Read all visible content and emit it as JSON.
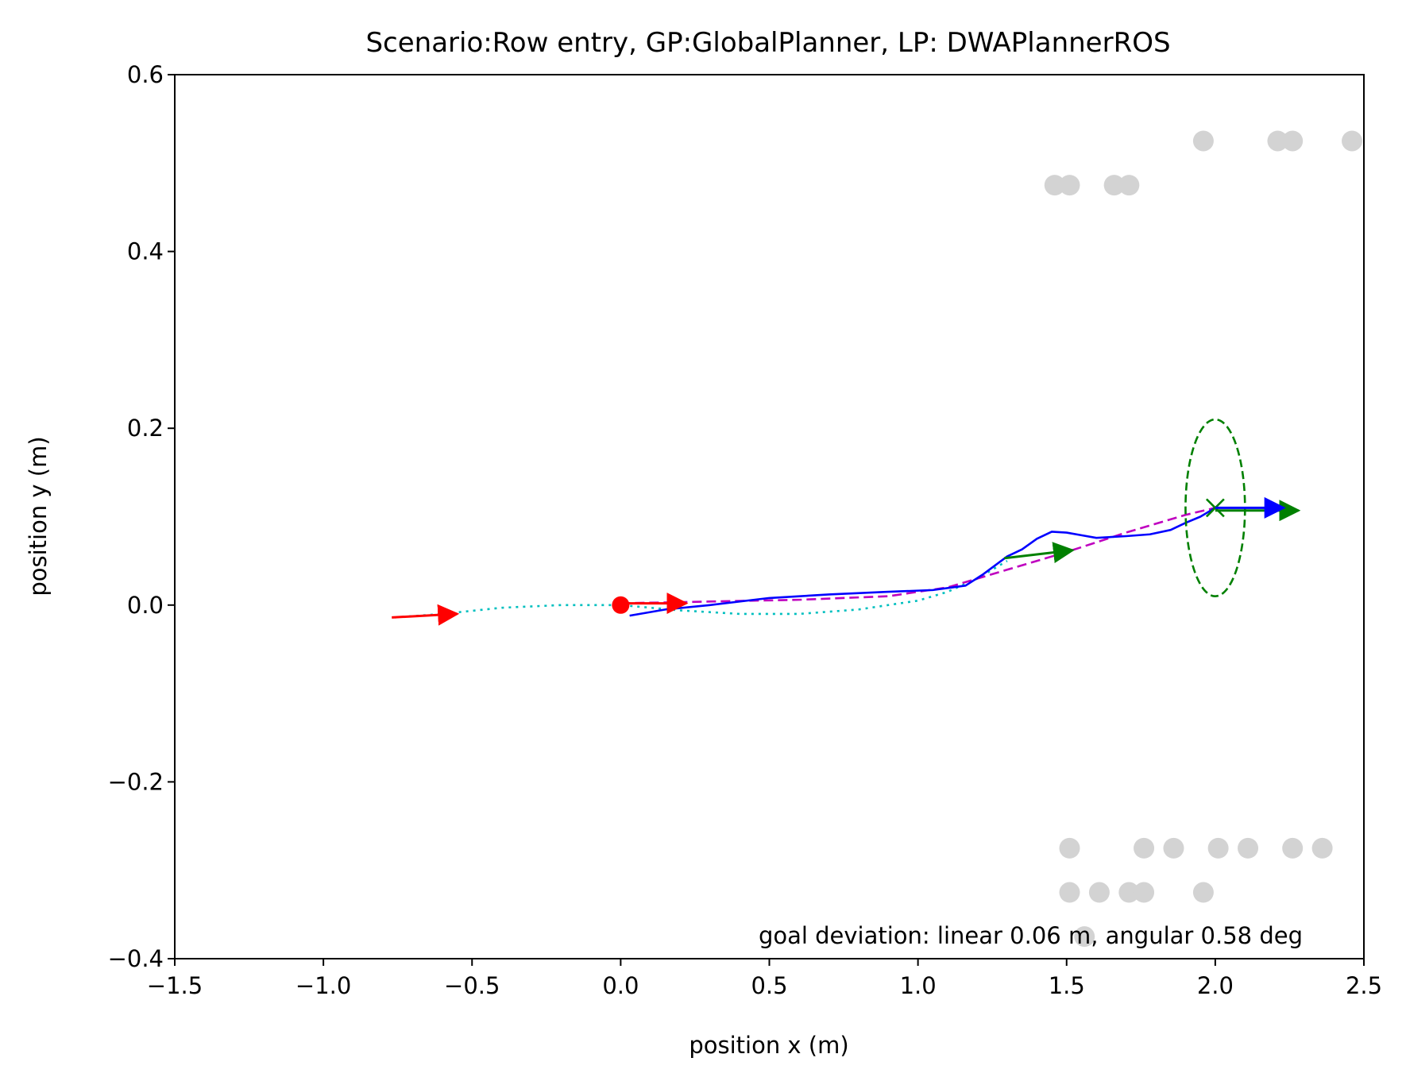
{
  "chart_data": {
    "type": "line",
    "title": "Scenario:Row entry, GP:GlobalPlanner, LP: DWAPlannerROS",
    "xlabel": "position x (m)",
    "ylabel": "position y (m)",
    "xlim": [
      -1.5,
      2.5
    ],
    "ylim": [
      -0.4,
      0.6
    ],
    "x_ticks": [
      -1.5,
      -1.0,
      -0.5,
      0.0,
      0.5,
      1.0,
      1.5,
      2.0,
      2.5
    ],
    "x_tick_labels": [
      "−1.5",
      "−1.0",
      "−0.5",
      "0.0",
      "0.5",
      "1.0",
      "1.5",
      "2.0",
      "2.5"
    ],
    "y_ticks": [
      -0.4,
      -0.2,
      0.0,
      0.2,
      0.4,
      0.6
    ],
    "y_tick_labels": [
      "−0.4",
      "−0.2",
      "0.0",
      "0.2",
      "0.4",
      "0.6"
    ],
    "grid": false,
    "annotation": "goal deviation: linear 0.06 m, angular 0.58 deg",
    "colors": {
      "obstacles": "#d3d3d3",
      "robot_path": "#0000ff",
      "global_plan": "#bf00bf",
      "reference_path": "#00bfbf",
      "goal": "#008000",
      "start": "#ff0000"
    },
    "obstacles": [
      {
        "x": 1.46,
        "y": 0.475
      },
      {
        "x": 1.51,
        "y": 0.475
      },
      {
        "x": 1.66,
        "y": 0.475
      },
      {
        "x": 1.71,
        "y": 0.475
      },
      {
        "x": 1.96,
        "y": 0.525
      },
      {
        "x": 2.21,
        "y": 0.525
      },
      {
        "x": 2.26,
        "y": 0.525
      },
      {
        "x": 2.46,
        "y": 0.525
      },
      {
        "x": 1.51,
        "y": -0.275
      },
      {
        "x": 1.76,
        "y": -0.275
      },
      {
        "x": 1.86,
        "y": -0.275
      },
      {
        "x": 2.01,
        "y": -0.275
      },
      {
        "x": 2.11,
        "y": -0.275
      },
      {
        "x": 2.26,
        "y": -0.275
      },
      {
        "x": 2.36,
        "y": -0.275
      },
      {
        "x": 1.51,
        "y": -0.325
      },
      {
        "x": 1.61,
        "y": -0.325
      },
      {
        "x": 1.71,
        "y": -0.325
      },
      {
        "x": 1.76,
        "y": -0.325
      },
      {
        "x": 1.96,
        "y": -0.325
      },
      {
        "x": 1.56,
        "y": -0.375
      }
    ],
    "series": [
      {
        "style": "dotted",
        "x": [
          -0.76,
          -0.6,
          -0.4,
          -0.2,
          0.0,
          0.2,
          0.4,
          0.6,
          0.8,
          1.0,
          1.1,
          1.2,
          1.3
        ],
        "y": [
          -0.014,
          -0.01,
          -0.003,
          0.0,
          0.0,
          -0.006,
          -0.01,
          -0.01,
          -0.005,
          0.005,
          0.015,
          0.03,
          0.05
        ]
      },
      {
        "style": "dashed",
        "x": [
          0.0,
          0.3,
          0.6,
          0.9,
          1.1,
          1.3,
          1.5,
          1.7,
          1.9,
          2.0
        ],
        "y": [
          0.002,
          0.004,
          0.006,
          0.01,
          0.02,
          0.04,
          0.06,
          0.082,
          0.102,
          0.11
        ]
      },
      {
        "style": "solid",
        "x": [
          0.03,
          0.15,
          0.3,
          0.5,
          0.7,
          0.9,
          1.05,
          1.16,
          1.22,
          1.3,
          1.35,
          1.4,
          1.45,
          1.5,
          1.55,
          1.6,
          1.7,
          1.78,
          1.85,
          1.9,
          1.95,
          2.0,
          2.2
        ],
        "y": [
          -0.012,
          -0.005,
          0.0,
          0.008,
          0.012,
          0.015,
          0.017,
          0.022,
          0.035,
          0.055,
          0.063,
          0.075,
          0.083,
          0.082,
          0.079,
          0.076,
          0.078,
          0.08,
          0.085,
          0.093,
          0.1,
          0.11,
          0.11
        ]
      }
    ],
    "start": {
      "x": 0.0,
      "y": 0.0
    },
    "start_arrows": [
      {
        "x0": -0.77,
        "y0": -0.014,
        "x1": -0.55,
        "y1": -0.01
      },
      {
        "x0": 0.0,
        "y0": 0.002,
        "x1": 0.22,
        "y1": 0.002
      }
    ],
    "goal": {
      "x": 2.0,
      "y": 0.11,
      "ellipse_rx": 0.1,
      "ellipse_ry": 0.1
    },
    "goal_arrows": [
      {
        "x0": 1.29,
        "y0": 0.053,
        "x1": 1.52,
        "y1": 0.062
      },
      {
        "x0": 2.0,
        "y0": 0.107,
        "x1": 2.28,
        "y1": 0.107
      }
    ],
    "final_arrow": {
      "x0": 2.0,
      "y0": 0.11,
      "x1": 2.23,
      "y1": 0.11
    }
  }
}
